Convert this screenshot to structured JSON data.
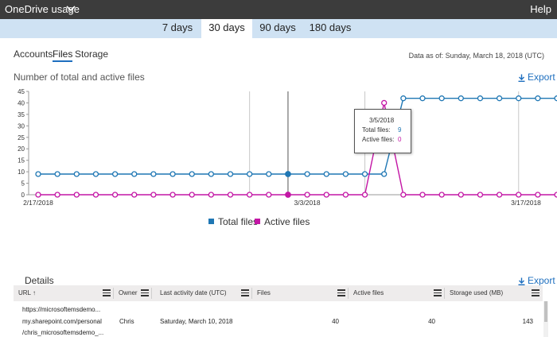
{
  "header": {
    "title": "OneDrive usage",
    "help": "Help"
  },
  "period_tabs": [
    {
      "label": "7 days",
      "active": false
    },
    {
      "label": "30 days",
      "active": true
    },
    {
      "label": "90 days",
      "active": false
    },
    {
      "label": "180 days",
      "active": false
    }
  ],
  "sub_tabs": [
    {
      "label": "Accounts",
      "active": false
    },
    {
      "label": "Files",
      "active": true
    },
    {
      "label": "Storage",
      "active": false
    }
  ],
  "as_of": "Data as of: Sunday, March 18, 2018 (UTC)",
  "chart_section": {
    "title": "Number of total and active files",
    "export": "Export"
  },
  "chart_data": {
    "type": "line",
    "title": "Number of total and active files",
    "x_start": "2/17/2018",
    "x_tick_labels": [
      "2/17/2018",
      "3/3/2018",
      "3/17/2018"
    ],
    "ylim": [
      0,
      45
    ],
    "y_ticks": [
      0,
      5,
      10,
      15,
      20,
      25,
      30,
      35,
      40,
      45
    ],
    "series": [
      {
        "name": "Total files",
        "color": "#1f77b4",
        "values": [
          9,
          9,
          9,
          9,
          9,
          9,
          9,
          9,
          9,
          9,
          9,
          9,
          9,
          9,
          9,
          9,
          9,
          9,
          9,
          42,
          42,
          42,
          42,
          42,
          42,
          42,
          42,
          42
        ]
      },
      {
        "name": "Active files",
        "color": "#c316a5",
        "values": [
          0,
          0,
          0,
          0,
          0,
          0,
          0,
          0,
          0,
          0,
          0,
          0,
          0,
          0,
          0,
          0,
          0,
          0,
          40,
          0,
          0,
          0,
          0,
          0,
          0,
          0,
          0,
          0
        ]
      }
    ],
    "highlighted_index": 13,
    "vertical_lines_at_index": [
      11,
      13,
      17,
      25
    ],
    "grid": false,
    "legend": "bottom-center"
  },
  "tooltip": {
    "date": "3/5/2018",
    "total_label": "Total files:",
    "total_value": "9",
    "active_label": "Active files:",
    "active_value": "0"
  },
  "legend": {
    "total": "Total files",
    "active": "Active files"
  },
  "details": {
    "title": "Details",
    "export": "Export",
    "columns": [
      "URL",
      "Owner",
      "Last activity date (UTC)",
      "Files",
      "Active files",
      "Storage used (MB)"
    ],
    "rows": [
      {
        "url_lines": [
          "https://microsoftemsdemo...",
          "my.sharepoint.com/personal",
          "/chris_microsoftemsdemo_..."
        ],
        "owner": "Chris",
        "last_activity": "Saturday, March 10, 2018",
        "files": "40",
        "active_files": "40",
        "storage_used": "143"
      }
    ]
  }
}
